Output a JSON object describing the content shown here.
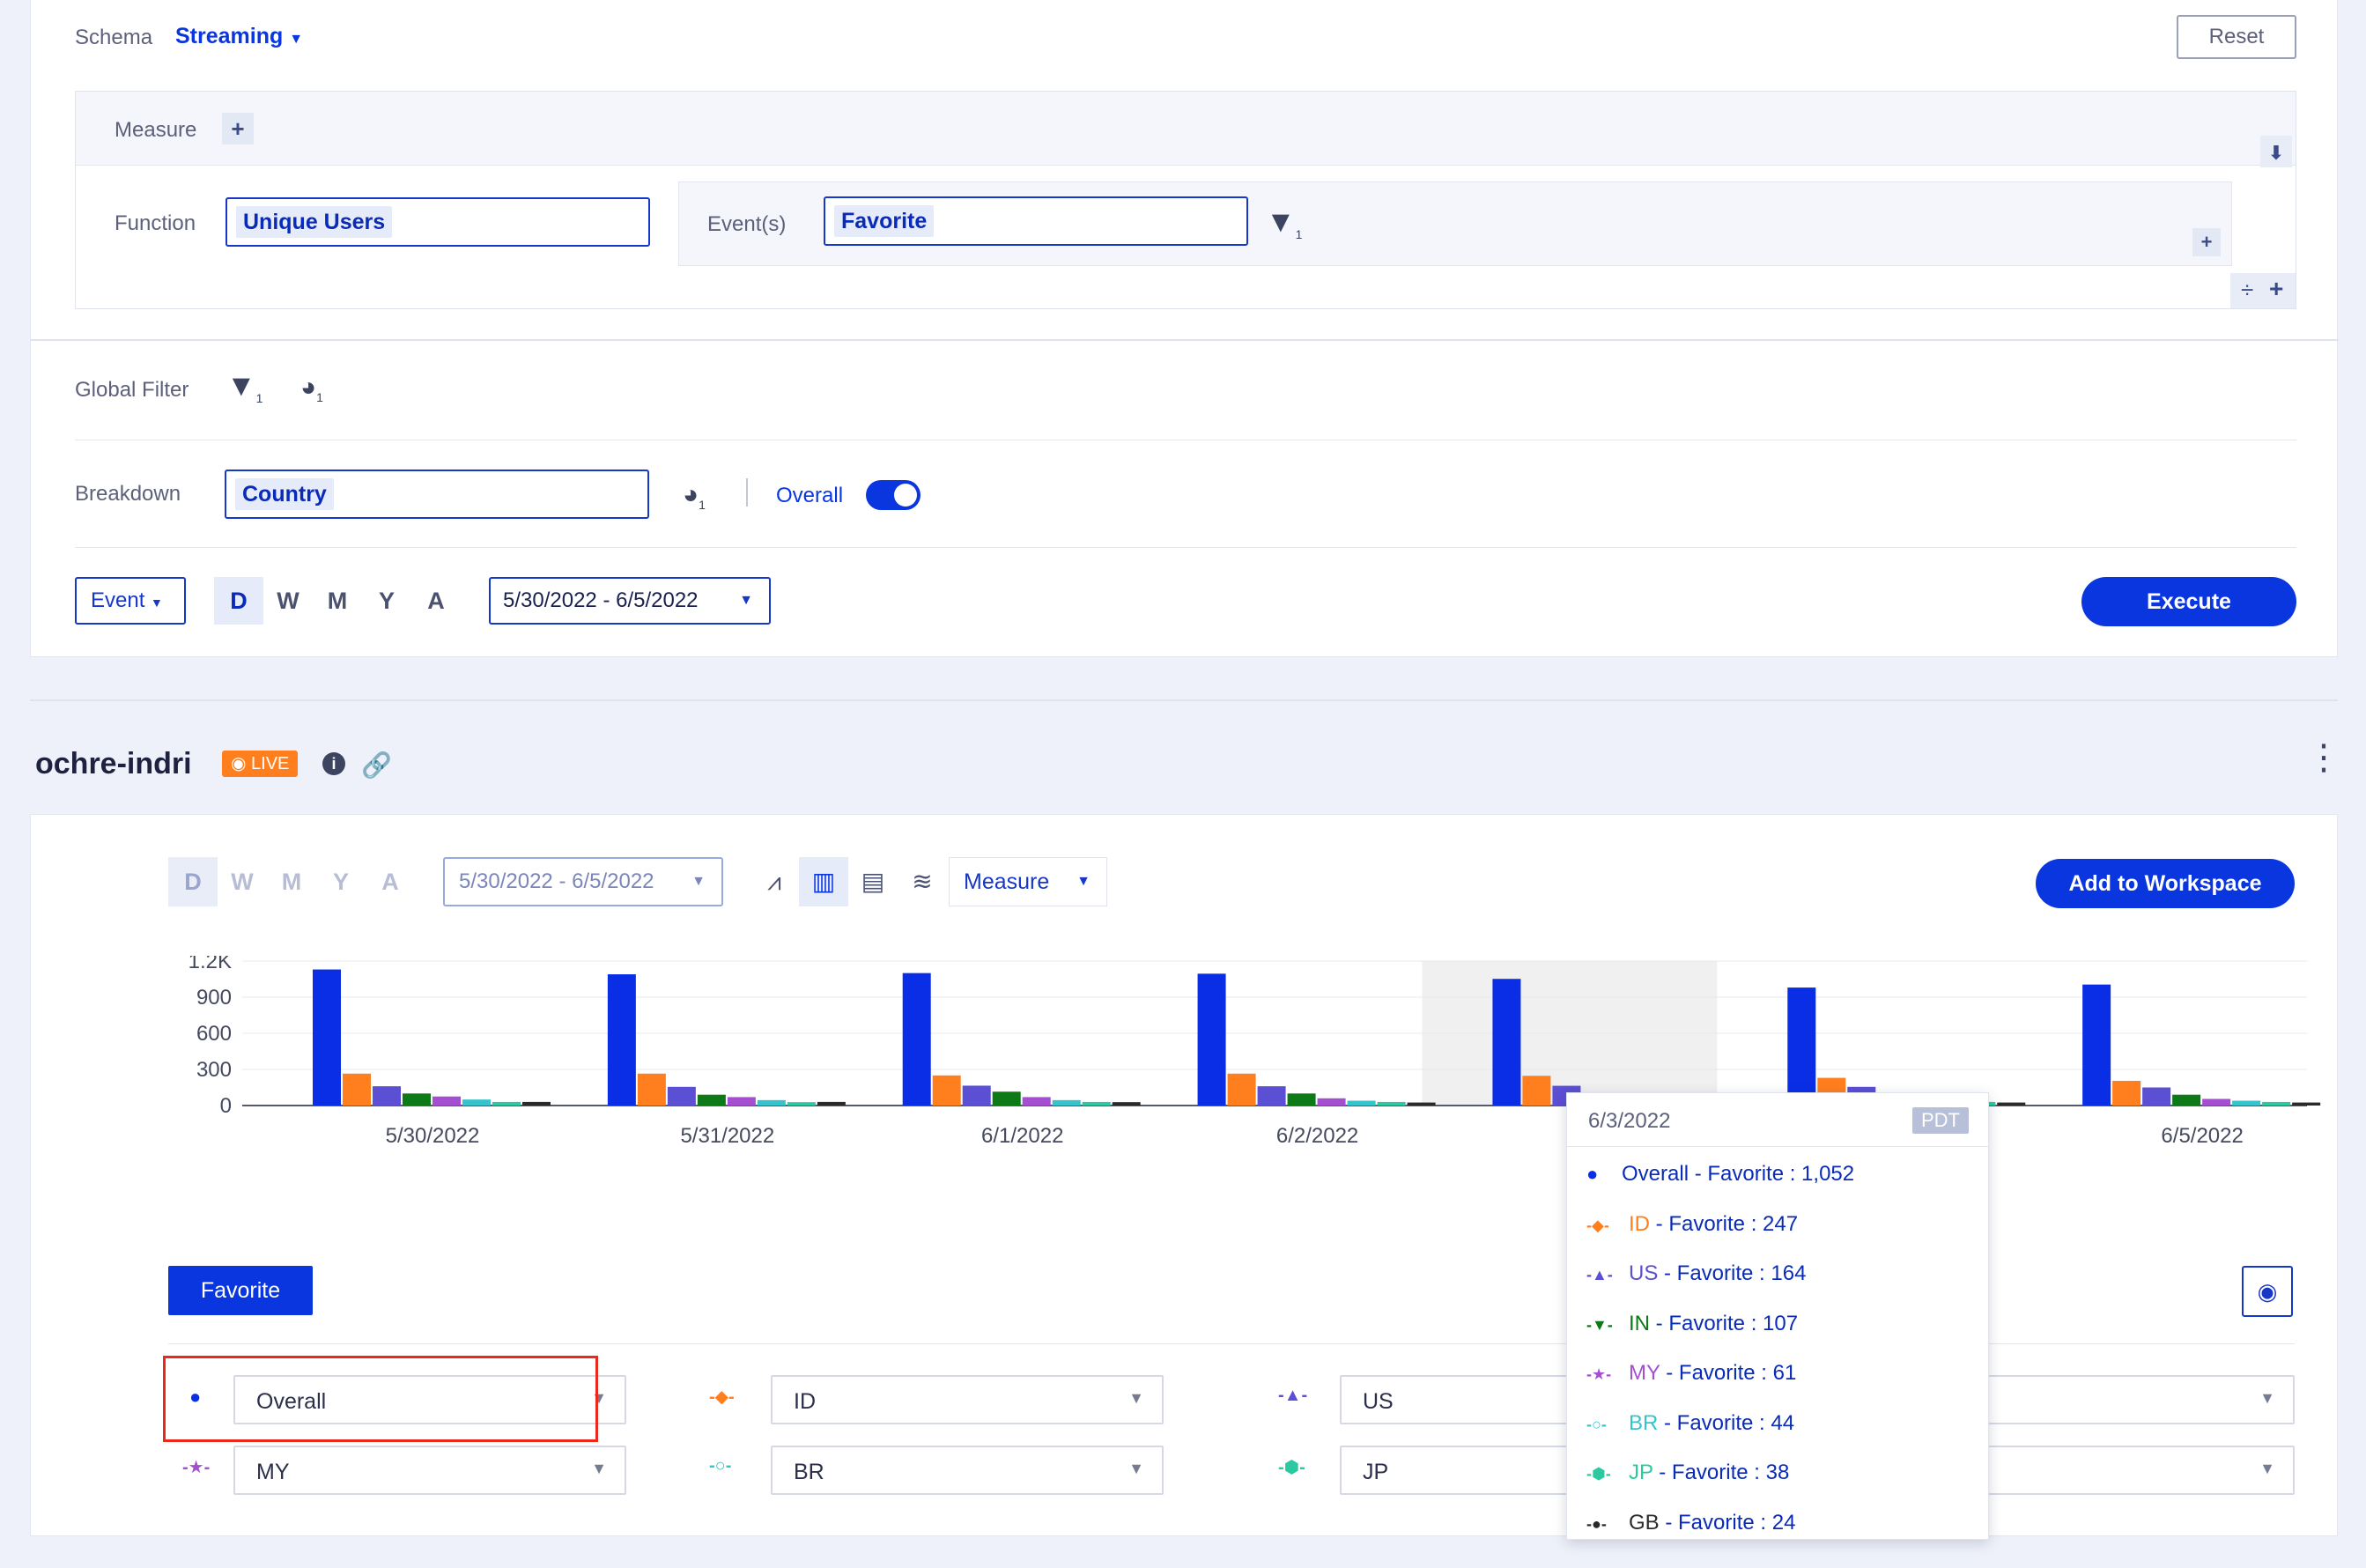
{
  "query": {
    "schema_label": "Schema",
    "schema_value": "Streaming",
    "reset_label": "Reset",
    "measure_label": "Measure",
    "function_label": "Function",
    "function_value": "Unique Users",
    "events_label": "Event(s)",
    "event_value": "Favorite",
    "event_filter_count": "1",
    "global_filter_label": "Global Filter",
    "global_filter_count": "1",
    "global_segment_count": "1",
    "breakdown_label": "Breakdown",
    "breakdown_value": "Country",
    "breakdown_segment_count": "1",
    "overall_label": "Overall",
    "overall_toggle": true,
    "event_dropdown": "Event",
    "granularity": [
      "D",
      "W",
      "M",
      "Y",
      "A"
    ],
    "granularity_selected": "D",
    "date_range": "5/30/2022 - 6/5/2022",
    "execute_label": "Execute"
  },
  "result": {
    "title": "ochre-indri",
    "live_badge": "LIVE",
    "granularity": [
      "D",
      "W",
      "M",
      "Y",
      "A"
    ],
    "date_range": "5/30/2022 - 6/5/2022",
    "measure_dropdown": "Measure",
    "add_to_workspace_label": "Add to Workspace",
    "event_tab": "Favorite"
  },
  "chart_data": {
    "type": "bar",
    "categories": [
      "5/30/2022",
      "5/31/2022",
      "6/1/2022",
      "6/2/2022",
      "6/3/2022",
      "6/4/2022",
      "6/5/2022"
    ],
    "ylim": [
      0,
      1200
    ],
    "yticks": [
      "0",
      "300",
      "600",
      "900",
      "1.2K"
    ],
    "series": [
      {
        "name": "Overall",
        "color": "#0a2ee6",
        "values": [
          1130,
          1090,
          1100,
          1095,
          1052,
          980,
          1005
        ]
      },
      {
        "name": "ID",
        "color": "#ff7f1e",
        "values": [
          265,
          265,
          250,
          265,
          247,
          230,
          205
        ]
      },
      {
        "name": "US",
        "color": "#5b4fd4",
        "values": [
          160,
          155,
          165,
          160,
          164,
          155,
          150
        ]
      },
      {
        "name": "IN",
        "color": "#0d7a17",
        "values": [
          100,
          90,
          115,
          100,
          107,
          95,
          90
        ]
      },
      {
        "name": "MY",
        "color": "#a44fd0",
        "values": [
          75,
          70,
          70,
          60,
          61,
          60,
          55
        ]
      },
      {
        "name": "BR",
        "color": "#37c3cc",
        "values": [
          50,
          45,
          45,
          40,
          44,
          40,
          40
        ]
      },
      {
        "name": "JP",
        "color": "#2cc9a0",
        "values": [
          30,
          28,
          30,
          30,
          38,
          30,
          30
        ]
      },
      {
        "name": "GB",
        "color": "#2a2a2a",
        "values": [
          30,
          30,
          28,
          25,
          24,
          25,
          25
        ]
      }
    ],
    "highlighted_index": 4
  },
  "tooltip": {
    "date": "6/3/2022",
    "tz": "PDT",
    "rows": [
      {
        "code": "Overall",
        "text": " - Favorite : 1,052",
        "color": "#0a2ee6",
        "marker": "●"
      },
      {
        "code": "ID",
        "text": " - Favorite : 247",
        "color": "#ff7f1e",
        "marker": "-◆-"
      },
      {
        "code": "US",
        "text": " - Favorite : 164",
        "color": "#5b4fd4",
        "marker": "-▲-"
      },
      {
        "code": "IN",
        "text": " - Favorite : 107",
        "color": "#0d7a17",
        "marker": "-▼-"
      },
      {
        "code": "MY",
        "text": " - Favorite : 61",
        "color": "#a44fd0",
        "marker": "-★-"
      },
      {
        "code": "BR",
        "text": " - Favorite : 44",
        "color": "#37c3cc",
        "marker": "-○-"
      },
      {
        "code": "JP",
        "text": " - Favorite : 38",
        "color": "#2cc9a0",
        "marker": "-⬢-"
      },
      {
        "code": "GB",
        "text": " - Favorite : 24",
        "color": "#2a2a2a",
        "marker": "-●-"
      }
    ]
  },
  "legend": [
    {
      "label": "Overall",
      "color": "#0a2ee6",
      "marker": "●"
    },
    {
      "label": "ID",
      "color": "#ff7f1e",
      "marker": "-◆-"
    },
    {
      "label": "US",
      "color": "#5b4fd4",
      "marker": "-▲-"
    },
    {
      "label": "",
      "color": "#0d7a17",
      "marker": ""
    },
    {
      "label": "MY",
      "color": "#a44fd0",
      "marker": "-★-"
    },
    {
      "label": "BR",
      "color": "#37c3cc",
      "marker": "-○-"
    },
    {
      "label": "JP",
      "color": "#2cc9a0",
      "marker": "-⬢-"
    },
    {
      "label": "",
      "color": "#2a2a2a",
      "marker": ""
    }
  ]
}
